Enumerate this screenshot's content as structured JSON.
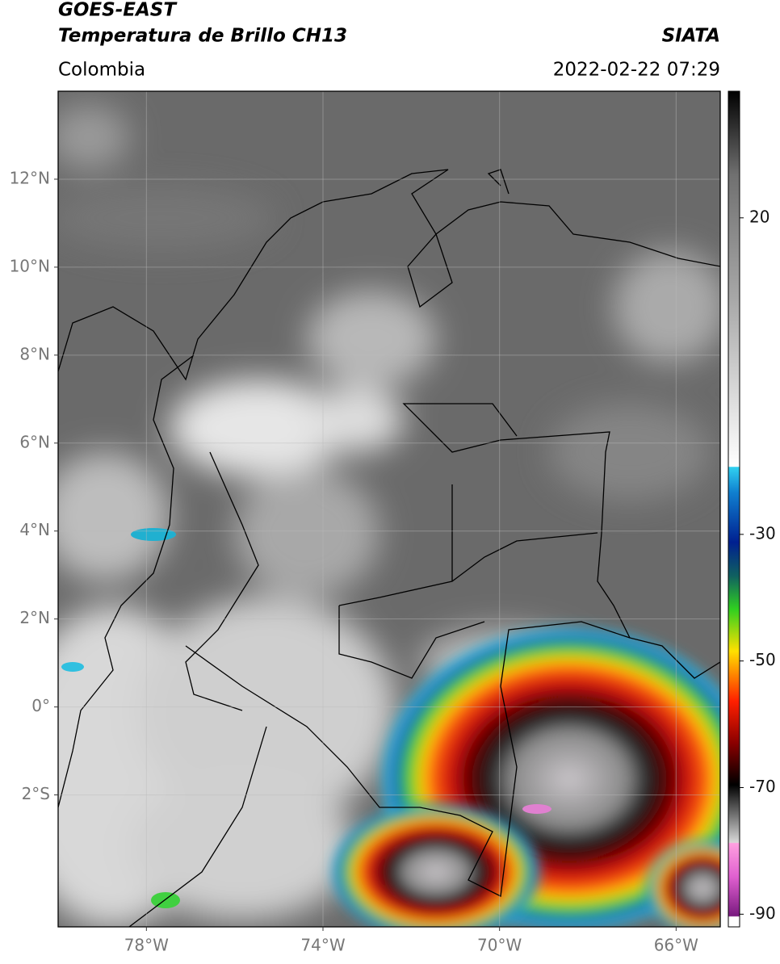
{
  "header": {
    "title": "GOES-EAST",
    "subtitle": "Temperatura de Brillo CH13",
    "region": "Colombia",
    "source": "SIATA",
    "datetime": "2022-02-22 07:29"
  },
  "map": {
    "lonlim": [
      -80,
      -65
    ],
    "latlim": [
      -5,
      14
    ],
    "lon_ticks": [
      {
        "value": -78,
        "label": "78°W"
      },
      {
        "value": -74,
        "label": "74°W"
      },
      {
        "value": -70,
        "label": "70°W"
      },
      {
        "value": -66,
        "label": "66°W"
      }
    ],
    "lat_ticks": [
      {
        "value": 12,
        "label": "12°N"
      },
      {
        "value": 10,
        "label": "10°N"
      },
      {
        "value": 8,
        "label": "8°N"
      },
      {
        "value": 6,
        "label": "6°N"
      },
      {
        "value": 4,
        "label": "4°N"
      },
      {
        "value": 2,
        "label": "2°N"
      },
      {
        "value": 0,
        "label": "0°"
      },
      {
        "value": -2,
        "label": "2°S"
      }
    ]
  },
  "colorbar": {
    "lim": [
      -92,
      40
    ],
    "ticks": [
      20,
      -30,
      -50,
      -70,
      -90
    ]
  }
}
